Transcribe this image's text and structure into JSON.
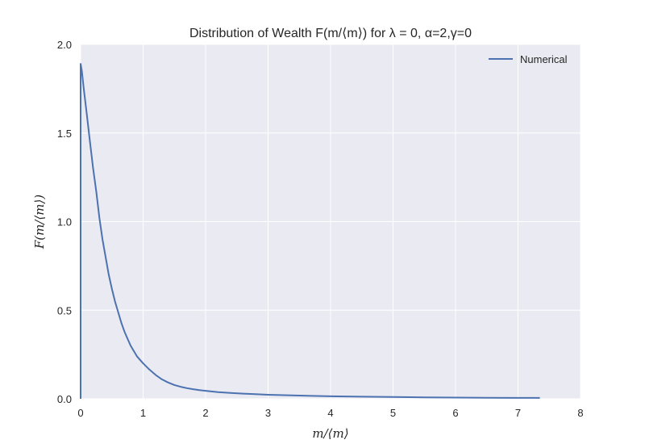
{
  "chart_data": {
    "type": "line",
    "title": "Distribution of Wealth F(m/⟨m⟩) for λ = 0, α=2,γ=0",
    "xlabel": "m/⟨m⟩",
    "ylabel": "F(m/⟨m⟩)",
    "xlim": [
      0,
      8
    ],
    "ylim": [
      0,
      2.0
    ],
    "xticks": [
      "0",
      "1",
      "2",
      "3",
      "4",
      "5",
      "6",
      "7",
      "8"
    ],
    "yticks": [
      "0.0",
      "0.5",
      "1.0",
      "1.5",
      "2.0"
    ],
    "grid": true,
    "legend_position": "top-right",
    "colors": {
      "series": "#4c72b0",
      "plot_bg": "#eaeaf2",
      "grid": "#ffffff"
    },
    "series": [
      {
        "name": "Numerical",
        "x": [
          0,
          0,
          0.02,
          0.05,
          0.1,
          0.15,
          0.2,
          0.25,
          0.3,
          0.35,
          0.4,
          0.45,
          0.5,
          0.55,
          0.6,
          0.65,
          0.7,
          0.75,
          0.8,
          0.85,
          0.9,
          0.95,
          1.0,
          1.1,
          1.2,
          1.3,
          1.4,
          1.5,
          1.6,
          1.7,
          1.8,
          1.9,
          2.0,
          2.2,
          2.4,
          2.6,
          2.8,
          3.0,
          3.5,
          4.0,
          4.5,
          5.0,
          5.5,
          6.0,
          6.5,
          7.0,
          7.35
        ],
        "y": [
          0,
          1.89,
          1.85,
          1.75,
          1.6,
          1.45,
          1.3,
          1.17,
          1.02,
          0.9,
          0.8,
          0.7,
          0.62,
          0.55,
          0.49,
          0.43,
          0.38,
          0.34,
          0.3,
          0.27,
          0.24,
          0.22,
          0.2,
          0.165,
          0.135,
          0.11,
          0.092,
          0.078,
          0.068,
          0.06,
          0.054,
          0.049,
          0.045,
          0.038,
          0.033,
          0.029,
          0.026,
          0.023,
          0.018,
          0.014,
          0.012,
          0.01,
          0.008,
          0.007,
          0.006,
          0.005,
          0.005
        ]
      }
    ]
  }
}
